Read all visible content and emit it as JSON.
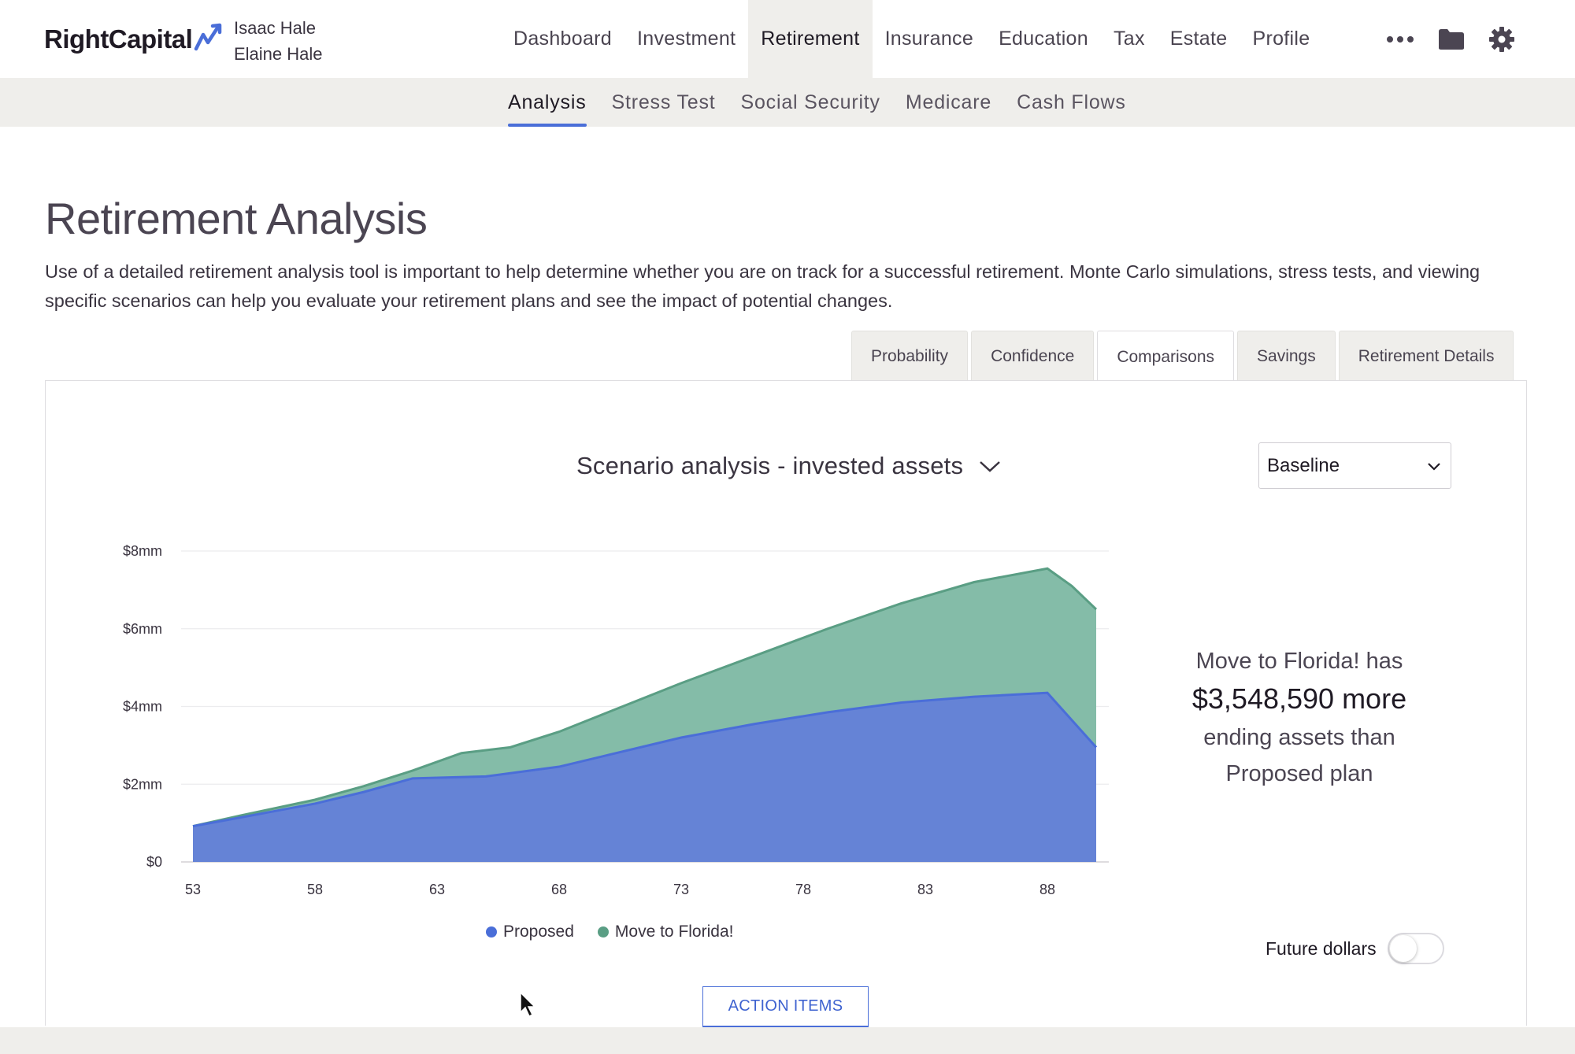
{
  "app": {
    "logo_text": "RightCapital",
    "clients": [
      "Isaac Hale",
      "Elaine Hale"
    ]
  },
  "main_nav": [
    {
      "label": "Dashboard",
      "active": false
    },
    {
      "label": "Investment",
      "active": false
    },
    {
      "label": "Retirement",
      "active": true
    },
    {
      "label": "Insurance",
      "active": false
    },
    {
      "label": "Education",
      "active": false
    },
    {
      "label": "Tax",
      "active": false
    },
    {
      "label": "Estate",
      "active": false
    },
    {
      "label": "Profile",
      "active": false
    }
  ],
  "top_icons": [
    "more-icon",
    "folder-icon",
    "gear-icon"
  ],
  "sub_nav": [
    {
      "label": "Analysis",
      "active": true
    },
    {
      "label": "Stress Test",
      "active": false
    },
    {
      "label": "Social Security",
      "active": false
    },
    {
      "label": "Medicare",
      "active": false
    },
    {
      "label": "Cash Flows",
      "active": false
    }
  ],
  "page": {
    "title": "Retirement Analysis",
    "description": "Use of a detailed retirement analysis tool is important to help determine whether you are on track for a successful retirement. Monte Carlo simulations, stress tests, and viewing specific scenarios can help you evaluate your retirement plans and see the impact of potential changes."
  },
  "tabs": [
    {
      "label": "Probability",
      "active": false
    },
    {
      "label": "Confidence",
      "active": false
    },
    {
      "label": "Comparisons",
      "active": true
    },
    {
      "label": "Savings",
      "active": false
    },
    {
      "label": "Retirement Details",
      "active": false
    }
  ],
  "chart_header": {
    "title": "Scenario analysis - invested assets",
    "selected_scenario": "Baseline"
  },
  "summary": {
    "line1": "Move to Florida! has",
    "amount": "$3,548,590 more",
    "line3": "ending assets than",
    "line4": "Proposed plan"
  },
  "future_dollars": {
    "label": "Future dollars",
    "on": false
  },
  "action_button": {
    "label": "ACTION ITEMS"
  },
  "colors": {
    "proposed": "#6583d6",
    "proposed_line": "#4a6ed8",
    "florida": "#84bca8",
    "florida_line": "#5a9e84",
    "accent": "#4a6ed8"
  },
  "chart_data": {
    "type": "area",
    "x_ticks": [
      "53",
      "58",
      "63",
      "68",
      "73",
      "78",
      "83",
      "88"
    ],
    "y_ticks": [
      "$0",
      "$2mm",
      "$4mm",
      "$6mm",
      "$8mm"
    ],
    "ylim": [
      0,
      8
    ],
    "xlim": [
      53,
      90
    ],
    "series": [
      {
        "name": "Proposed",
        "x": [
          53,
          55,
          58,
          60,
          62,
          65,
          68,
          70,
          73,
          76,
          79,
          82,
          85,
          88,
          90
        ],
        "values": [
          0.92,
          1.15,
          1.5,
          1.8,
          2.15,
          2.2,
          2.45,
          2.75,
          3.2,
          3.55,
          3.85,
          4.1,
          4.25,
          4.35,
          2.95
        ]
      },
      {
        "name": "Move to Florida!",
        "x": [
          53,
          55,
          58,
          60,
          62,
          64,
          66,
          68,
          70,
          73,
          76,
          79,
          82,
          85,
          88,
          89,
          90
        ],
        "values": [
          0.92,
          1.2,
          1.6,
          1.95,
          2.35,
          2.8,
          2.95,
          3.35,
          3.85,
          4.6,
          5.3,
          6.0,
          6.65,
          7.2,
          7.55,
          7.1,
          6.5
        ]
      }
    ]
  }
}
